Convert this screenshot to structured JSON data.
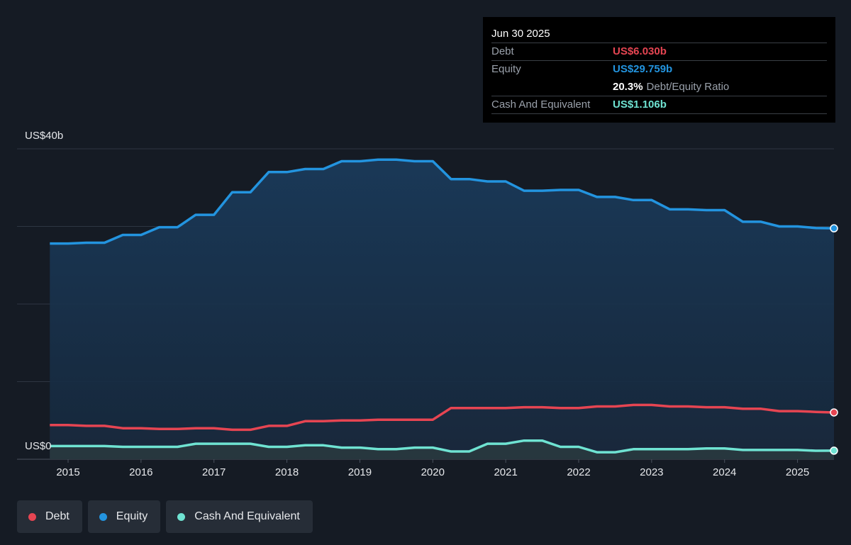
{
  "chart_data": {
    "type": "line",
    "x": [
      2014.75,
      2015,
      2015.25,
      2015.5,
      2015.75,
      2016,
      2016.25,
      2016.5,
      2016.75,
      2017,
      2017.25,
      2017.5,
      2017.75,
      2018,
      2018.25,
      2018.5,
      2018.75,
      2019,
      2019.25,
      2019.5,
      2019.75,
      2020,
      2020.25,
      2020.5,
      2020.75,
      2021,
      2021.25,
      2021.5,
      2021.75,
      2022,
      2022.25,
      2022.5,
      2022.75,
      2023,
      2023.25,
      2023.5,
      2023.75,
      2024,
      2024.25,
      2024.5,
      2024.75,
      2025,
      2025.25,
      2025.5
    ],
    "series": [
      {
        "name": "Debt",
        "color": "#e64552",
        "fill": "#3a2631",
        "values": [
          4.4,
          4.4,
          4.3,
          4.3,
          4.0,
          4.0,
          3.9,
          3.9,
          4.0,
          4.0,
          3.8,
          3.8,
          4.3,
          4.3,
          4.9,
          4.9,
          5.0,
          5.0,
          5.1,
          5.1,
          5.1,
          5.1,
          6.6,
          6.6,
          6.6,
          6.6,
          6.7,
          6.7,
          6.6,
          6.6,
          6.8,
          6.8,
          7.0,
          7.0,
          6.8,
          6.8,
          6.7,
          6.7,
          6.5,
          6.5,
          6.2,
          6.2,
          6.1,
          6.03
        ]
      },
      {
        "name": "Equity",
        "color": "#2394df",
        "fill": "#183550",
        "values": [
          27.8,
          27.8,
          27.9,
          27.9,
          28.9,
          28.9,
          29.9,
          29.9,
          31.5,
          31.5,
          34.4,
          34.4,
          37.0,
          37.0,
          37.4,
          37.4,
          38.4,
          38.4,
          38.6,
          38.6,
          38.4,
          38.4,
          36.1,
          36.1,
          35.8,
          35.8,
          34.6,
          34.6,
          34.7,
          34.7,
          33.8,
          33.8,
          33.4,
          33.4,
          32.2,
          32.2,
          32.1,
          32.1,
          30.6,
          30.6,
          30.0,
          30.0,
          29.8,
          29.759
        ]
      },
      {
        "name": "Cash And Equivalent",
        "color": "#6fe3d2",
        "fill": "#2a3a40",
        "values": [
          1.7,
          1.7,
          1.7,
          1.7,
          1.6,
          1.6,
          1.6,
          1.6,
          2.0,
          2.0,
          2.0,
          2.0,
          1.6,
          1.6,
          1.8,
          1.8,
          1.5,
          1.5,
          1.3,
          1.3,
          1.5,
          1.5,
          1.0,
          1.0,
          2.0,
          2.0,
          2.4,
          2.4,
          1.6,
          1.6,
          0.9,
          0.9,
          1.3,
          1.3,
          1.3,
          1.3,
          1.4,
          1.4,
          1.2,
          1.2,
          1.2,
          1.2,
          1.1,
          1.106
        ]
      }
    ],
    "xlim": [
      2014.3,
      2025.5
    ],
    "xticks": [
      2015,
      2016,
      2017,
      2018,
      2019,
      2020,
      2021,
      2022,
      2023,
      2024,
      2025
    ],
    "ylim": [
      0,
      40
    ],
    "yticks": [
      {
        "value": 0,
        "label": "US$0"
      },
      {
        "value": 40,
        "label": "US$40b"
      }
    ],
    "ygrid": [
      0,
      10,
      20,
      30,
      40
    ],
    "tooltip": {
      "date": "Jun 30 2025",
      "debt_label": "Debt",
      "debt_value": "US$6.030b",
      "equity_label": "Equity",
      "equity_value": "US$29.759b",
      "ratio_value": "20.3%",
      "ratio_label": "Debt/Equity Ratio",
      "cash_label": "Cash And Equivalent",
      "cash_value": "US$1.106b"
    }
  }
}
